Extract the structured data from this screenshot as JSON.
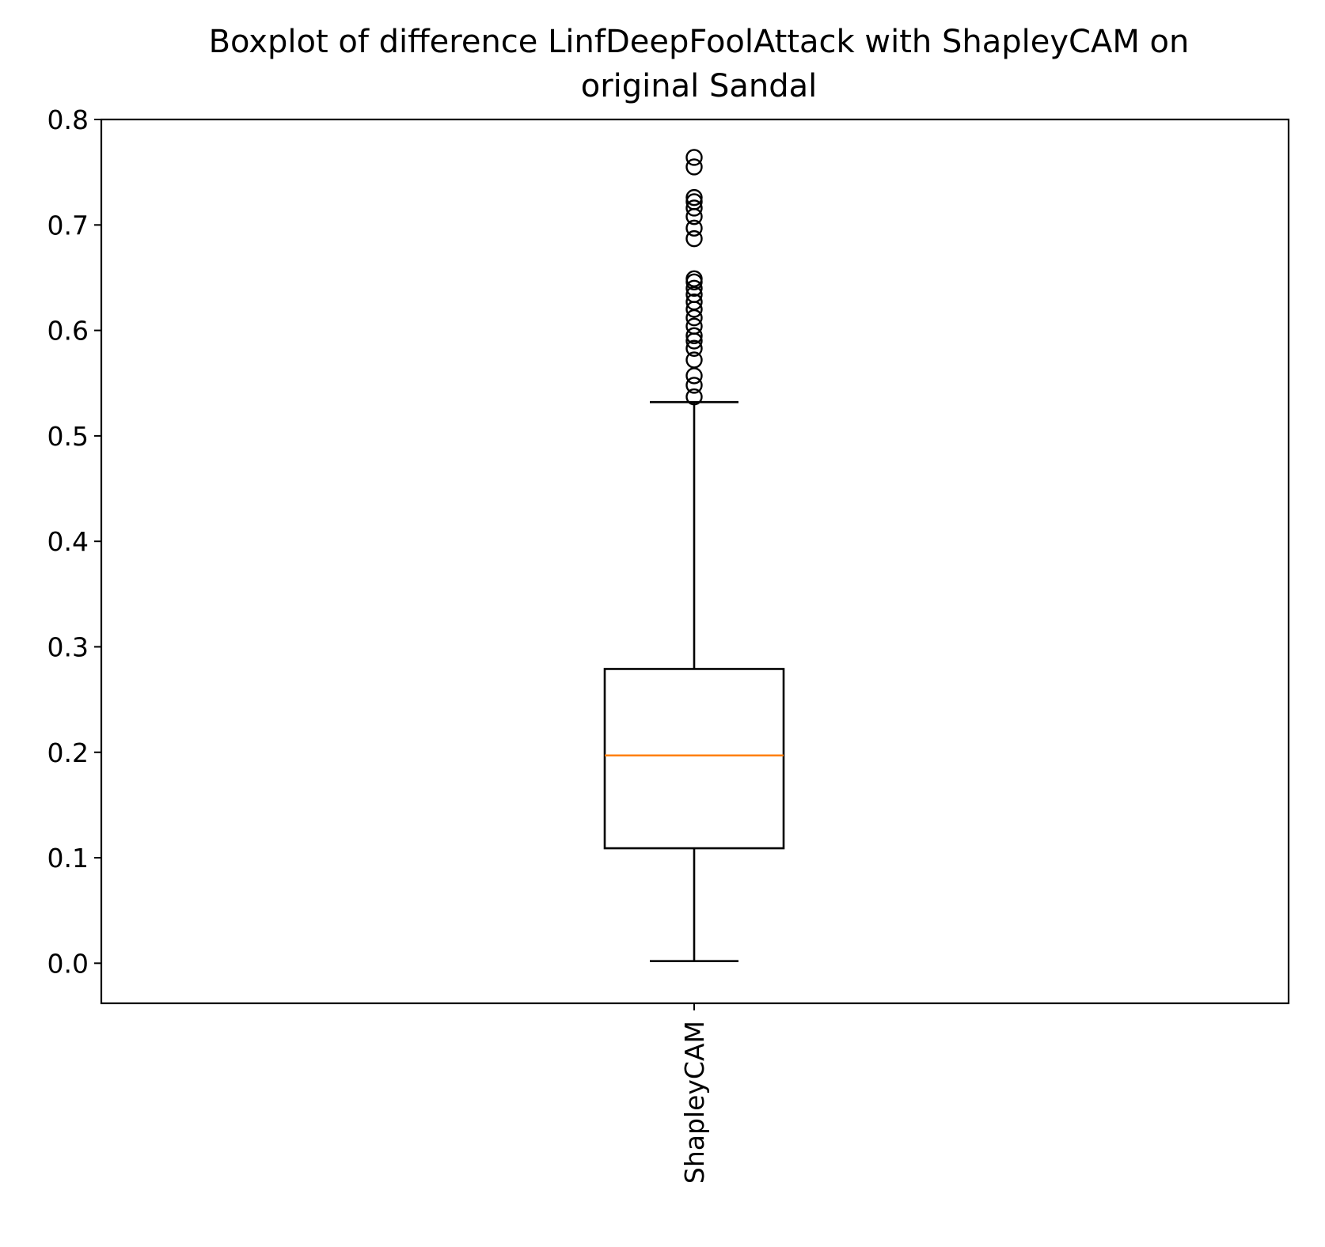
{
  "chart_data": {
    "type": "box",
    "title": "Boxplot of difference LinfDeepFoolAttack with ShapleyCAM on original Sandal",
    "title_lines": [
      "Boxplot of difference LinfDeepFoolAttack with ShapleyCAM on",
      "original Sandal"
    ],
    "xlabel": "",
    "ylabel": "",
    "categories": [
      "ShapleyCAM"
    ],
    "ylim": [
      -0.038,
      0.8
    ],
    "yticks": [
      0.0,
      0.1,
      0.2,
      0.3,
      0.4,
      0.5,
      0.6,
      0.7,
      0.8
    ],
    "ytick_labels": [
      "0.0",
      "0.1",
      "0.2",
      "0.3",
      "0.4",
      "0.5",
      "0.6",
      "0.7",
      "0.8"
    ],
    "grid": false,
    "boxes": [
      {
        "label": "ShapleyCAM",
        "whisker_low": 0.002,
        "q1": 0.109,
        "median": 0.197,
        "q3": 0.279,
        "whisker_high": 0.532,
        "outliers": [
          0.537,
          0.548,
          0.557,
          0.572,
          0.583,
          0.59,
          0.595,
          0.604,
          0.612,
          0.62,
          0.627,
          0.634,
          0.64,
          0.646,
          0.649,
          0.687,
          0.697,
          0.708,
          0.716,
          0.722,
          0.726,
          0.755,
          0.764
        ]
      }
    ],
    "colors": {
      "box": "#000000",
      "median": "#ff7f0e",
      "outlier": "#000000"
    }
  }
}
